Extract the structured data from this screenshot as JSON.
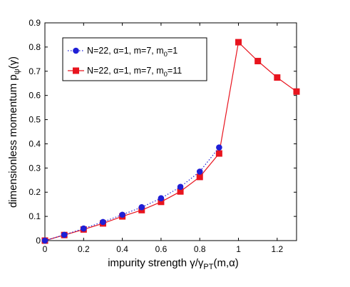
{
  "chart_data": {
    "type": "line",
    "xlim": [
      0,
      1.3
    ],
    "ylim": [
      0,
      0.9
    ],
    "xticks": [
      0,
      0.2,
      0.4,
      0.6,
      0.8,
      1,
      1.2
    ],
    "xtick_labels": [
      "0",
      "0.2",
      "0.4",
      "0.6",
      "0.8",
      "1",
      "1.2"
    ],
    "yticks": [
      0,
      0.1,
      0.2,
      0.3,
      0.4,
      0.5,
      0.6,
      0.7,
      0.8,
      0.9
    ],
    "ytick_labels": [
      "0",
      "0.1",
      "0.2",
      "0.3",
      "0.4",
      "0.5",
      "0.6",
      "0.7",
      "0.8",
      "0.9"
    ],
    "xlabel": {
      "main": "impurity strength γ/γ",
      "sub": "PT",
      "tail": "(m,α)"
    },
    "ylabel": {
      "main": "dimensionless momentum p",
      "sub": "ψ",
      "tail": "(γ)"
    },
    "grid": false,
    "legend_position": "top-left",
    "series": [
      {
        "name": {
          "main": "N=22, α=1, m=7, m",
          "sub": "0",
          "tail": "=1"
        },
        "color": "#1f1fd6",
        "line_style": "dotted",
        "marker": "circle",
        "x": [
          0,
          0.1,
          0.2,
          0.3,
          0.4,
          0.5,
          0.6,
          0.7,
          0.8,
          0.9
        ],
        "y": [
          0.0,
          0.024,
          0.05,
          0.077,
          0.107,
          0.138,
          0.175,
          0.222,
          0.285,
          0.385
        ]
      },
      {
        "name": {
          "main": "N=22, α=1, m=7, m",
          "sub": "0",
          "tail": "=11"
        },
        "color": "#e8141e",
        "line_style": "solid",
        "marker": "square",
        "x": [
          0,
          0.1,
          0.2,
          0.3,
          0.4,
          0.5,
          0.6,
          0.7,
          0.8,
          0.9,
          1.0,
          1.1,
          1.2,
          1.3
        ],
        "y": [
          0.0,
          0.023,
          0.046,
          0.071,
          0.1,
          0.126,
          0.16,
          0.203,
          0.263,
          0.36,
          0.82,
          0.742,
          0.674,
          0.616
        ]
      }
    ]
  }
}
